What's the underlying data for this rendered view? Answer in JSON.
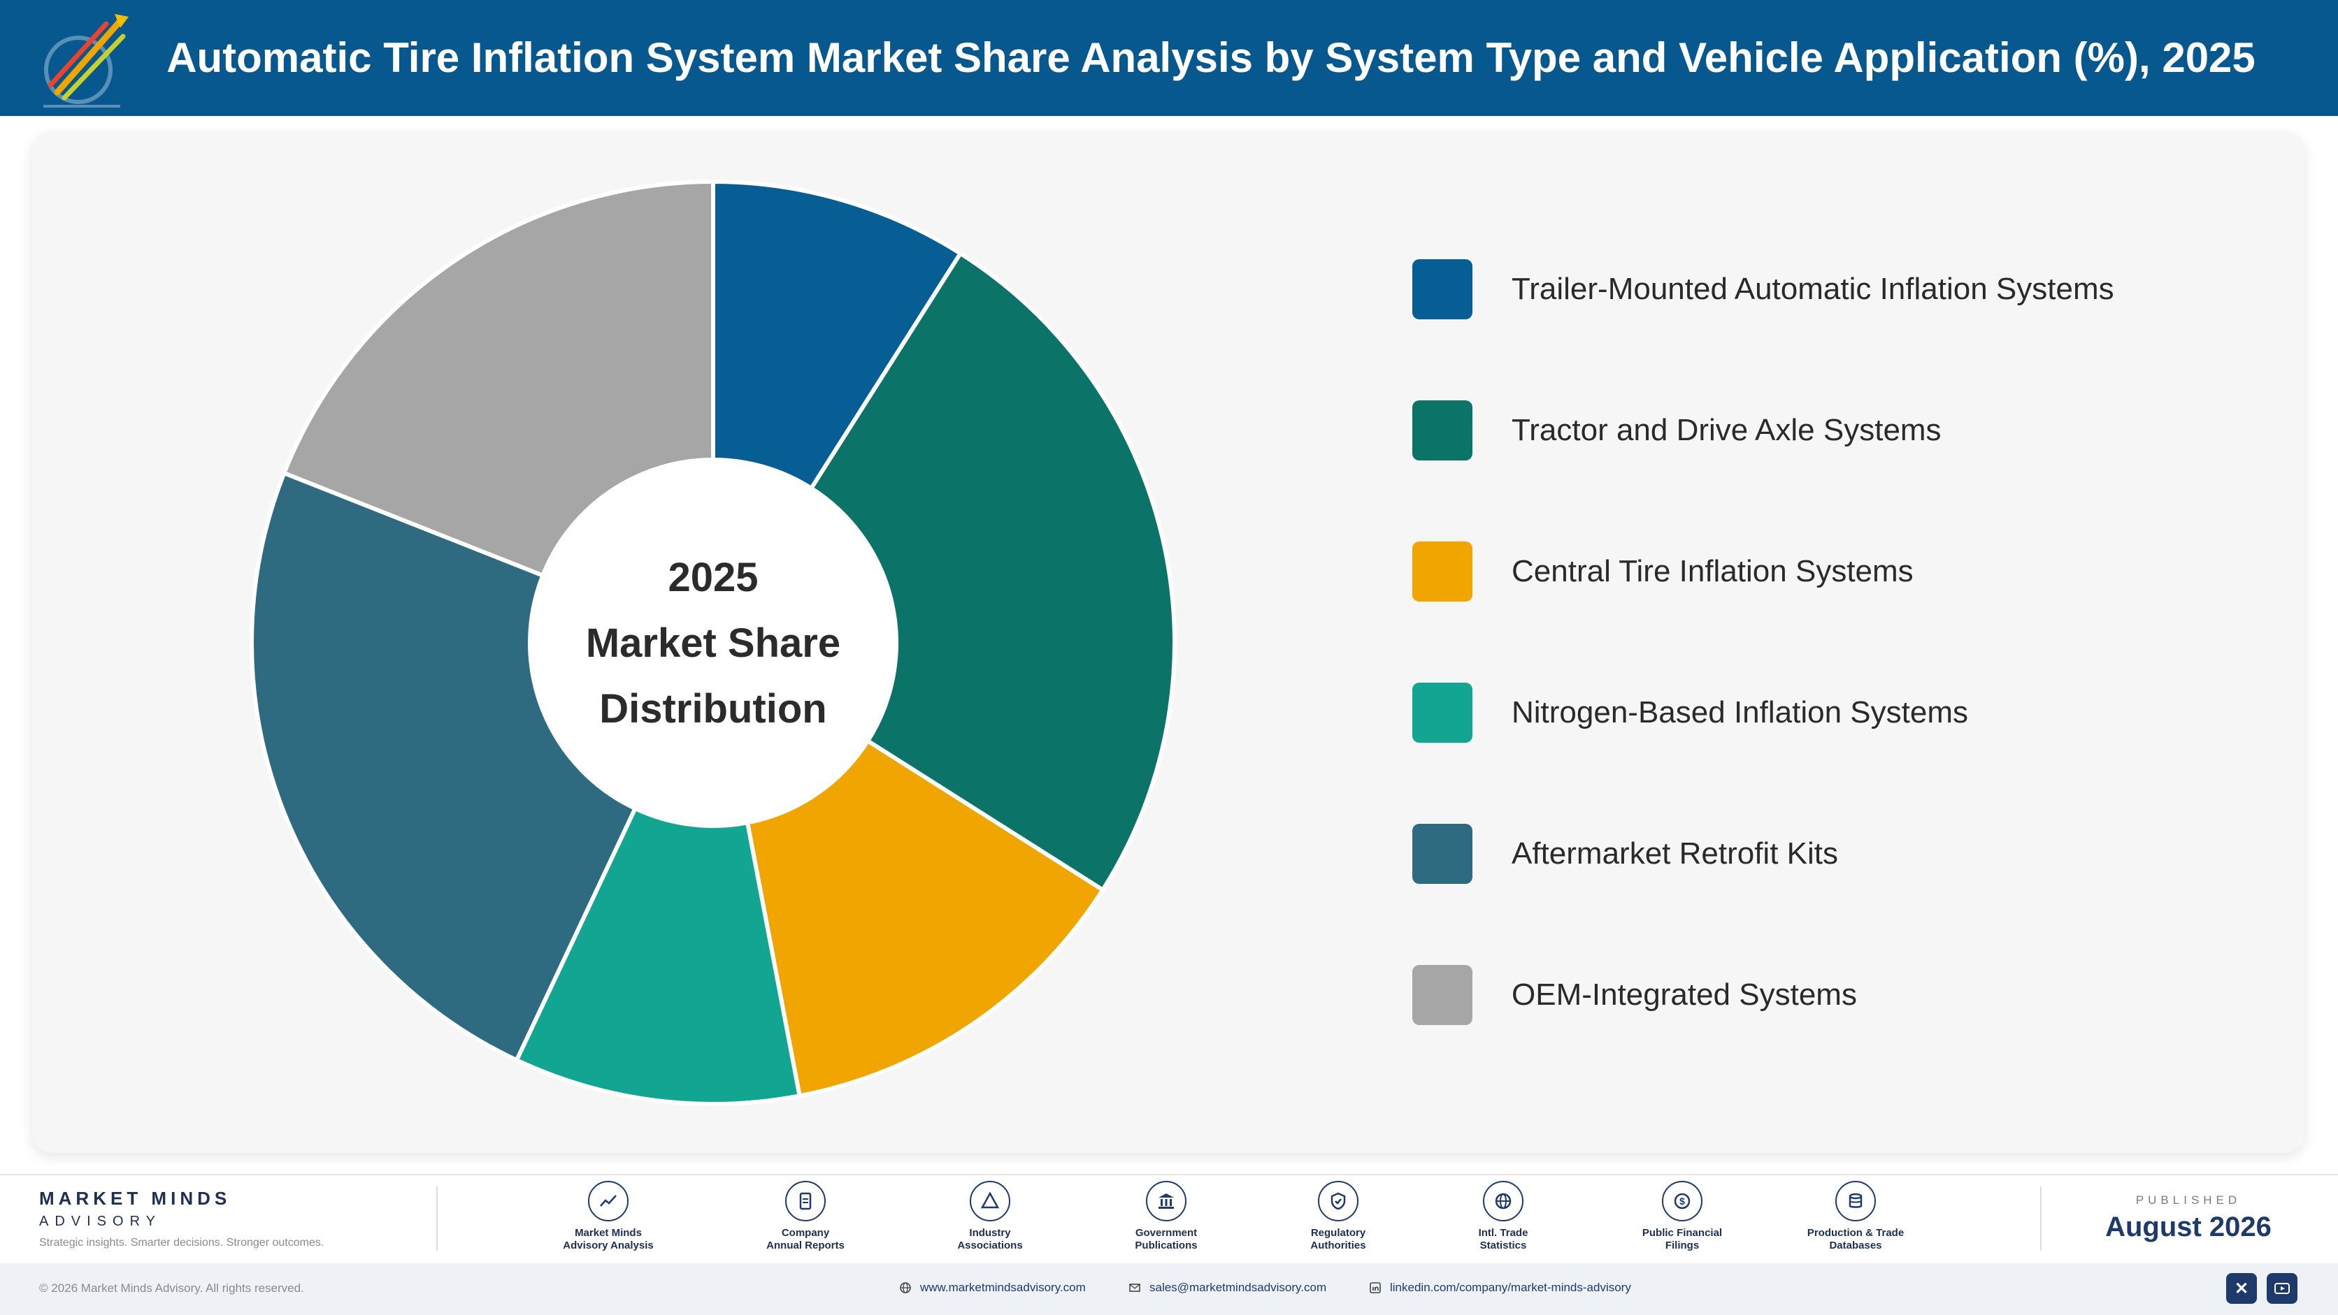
{
  "header": {
    "title": "Automatic Tire Inflation System Market Share Analysis by System Type and Vehicle Application (%), 2025"
  },
  "chart_data": {
    "type": "pie",
    "donut": true,
    "center_label": [
      "2025",
      "Market Share",
      "Distribution"
    ],
    "categories": [
      "Trailer-Mounted Automatic Inflation Systems",
      "Tractor and Drive Axle Systems",
      "Central Tire Inflation Systems",
      "Nitrogen-Based Inflation Systems",
      "Aftermarket Retrofit Kits",
      "OEM-Integrated Systems"
    ],
    "values": [
      9,
      25,
      13,
      10,
      24,
      19
    ],
    "colors": [
      "#075e94",
      "#0c7369",
      "#f0a500",
      "#12a592",
      "#2f6b80",
      "#a6a6a6"
    ],
    "legend_position": "right"
  },
  "footer": {
    "brand_name": "MARKET MINDS",
    "brand_sub": "ADVISORY",
    "brand_tagline": "Strategic insights. Smarter decisions. Stronger outcomes.",
    "sources": [
      {
        "label": "Market Minds\nAdvisory Analysis",
        "icon": "trend-chart-icon"
      },
      {
        "label": "Company\nAnnual Reports",
        "icon": "document-icon"
      },
      {
        "label": "Industry\nAssociations",
        "icon": "network-icon"
      },
      {
        "label": "Government\nPublications",
        "icon": "government-building-icon"
      },
      {
        "label": "Regulatory\nAuthorities",
        "icon": "shield-check-icon"
      },
      {
        "label": "Intl. Trade\nStatistics",
        "icon": "globe-icon"
      },
      {
        "label": "Public Financial\nFilings",
        "icon": "dollar-coin-icon"
      },
      {
        "label": "Production & Trade\nDatabases",
        "icon": "database-icon"
      }
    ],
    "published_label": "PUBLISHED",
    "published_date": "August 2026",
    "copyright": "© 2026 Market Minds Advisory. All rights reserved.",
    "website": "www.marketmindsadvisory.com",
    "email": "sales@marketmindsadvisory.com",
    "linkedin": "linkedin.com/company/market-minds-advisory"
  }
}
